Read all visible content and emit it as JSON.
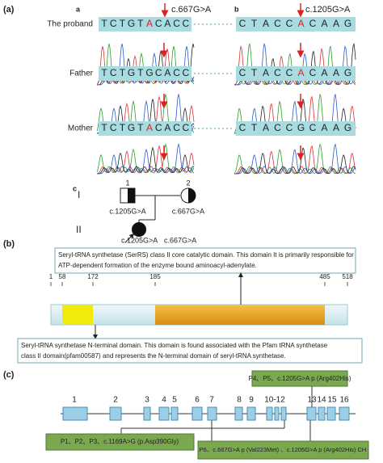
{
  "panel_a": {
    "label": "(a)",
    "sub_a": "a",
    "sub_b": "b",
    "mutation_a": "c.667G>A",
    "mutation_b": "c.1205G>A",
    "rows": [
      {
        "label": "The proband",
        "seq_a": [
          "T",
          "C",
          "T",
          "G",
          "T",
          "A",
          "C",
          "A",
          "C",
          "C"
        ],
        "highlight_a": 5,
        "seq_b": [
          "C",
          "T",
          "A",
          "C",
          "C",
          "A",
          "C",
          "A",
          "A",
          "G"
        ],
        "highlight_b": 5
      },
      {
        "label": "Father",
        "seq_a": [
          "T",
          "C",
          "T",
          "G",
          "T",
          "G",
          "C",
          "A",
          "C",
          "C"
        ],
        "highlight_a": null,
        "seq_b": [
          "C",
          "T",
          "A",
          "C",
          "C",
          "A",
          "C",
          "A",
          "A",
          "G"
        ],
        "highlight_b": 5
      },
      {
        "label": "Mother",
        "seq_a": [
          "T",
          "C",
          "T",
          "G",
          "T",
          "A",
          "C",
          "A",
          "C",
          "C"
        ],
        "highlight_a": 5,
        "seq_b": [
          "C",
          "T",
          "A",
          "C",
          "C",
          "G",
          "C",
          "A",
          "A",
          "G"
        ],
        "highlight_b": null
      }
    ],
    "pedigree": {
      "label": "c",
      "generation_1": "I",
      "generation_2": "II",
      "father_id": "1",
      "father_variant": "c.1205G>A",
      "mother_id": "2",
      "mother_variant": "c.667G>A",
      "proband_variant_1": "c.1205G>A",
      "proband_variant_2": "c.667G>A"
    }
  },
  "panel_b": {
    "label": "(b)",
    "top_note": [
      "Seryl-tRNA synthetase (SerRS) class II core catalytic domain. This domain It is primarily responsible for",
      "ATP-dependent formation of the enzyme bound aminoacyl-adenylate."
    ],
    "positions": [
      "1",
      "58",
      "172",
      "185",
      "485",
      "518"
    ],
    "bottom_note": [
      "Seryl-tRNA synthetase N-terminal domain. This domain is found associated with the Pfam tRNA synthetase",
      "class II domain(pfam00587) and represents the N-terminal domain of seryl-tRNA synthetase."
    ]
  },
  "panel_c": {
    "label": "(c)",
    "exons": [
      "1",
      "2",
      "3",
      "4",
      "5",
      "6",
      "7",
      "8",
      "9",
      "10-12",
      "13",
      "14",
      "15",
      "16"
    ],
    "box_top": "P4、P5、c.1205G>A p (Arg402His)",
    "box_left": "P1、P2、P3、c.1169A>G (p.Asp390Gly)",
    "box_right": "P6、c.667G>A p (Val223Met) 、c.1205G>A p (Arg402His) CH"
  }
}
